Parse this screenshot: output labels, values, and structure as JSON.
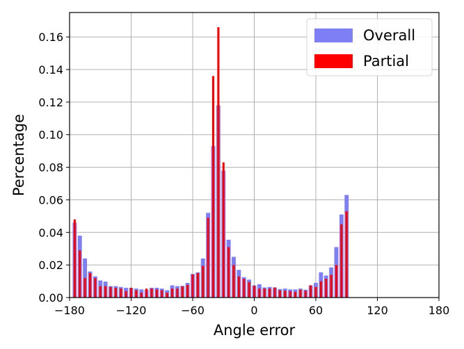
{
  "chart_data": {
    "type": "bar",
    "xlabel": "Angle error",
    "ylabel": "Percentage",
    "xlim": [
      -180,
      180
    ],
    "ylim": [
      0,
      0.175
    ],
    "xticks": [
      -180,
      -120,
      -60,
      0,
      60,
      120,
      180
    ],
    "xtick_labels": [
      "−180",
      "−120",
      "−60",
      "0",
      "60",
      "120",
      "180"
    ],
    "yticks": [
      0.0,
      0.02,
      0.04,
      0.06,
      0.08,
      0.1,
      0.12,
      0.14,
      0.16
    ],
    "ytick_labels": [
      "0.00",
      "0.02",
      "0.04",
      "0.06",
      "0.08",
      "0.10",
      "0.12",
      "0.14",
      "0.16"
    ],
    "grid": true,
    "legend_position": "top-right",
    "bin_centers": [
      -175,
      -170,
      -165,
      -160,
      -155,
      -150,
      -145,
      -140,
      -135,
      -130,
      -125,
      -120,
      -115,
      -110,
      -105,
      -100,
      -95,
      -90,
      -85,
      -80,
      -75,
      -70,
      -65,
      -60,
      -55,
      -50,
      -45,
      -40,
      -35,
      -30,
      -25,
      -20,
      -15,
      -10,
      -5,
      0,
      5,
      10,
      15,
      20,
      25,
      30,
      35,
      40,
      45,
      50,
      55,
      60,
      65,
      70,
      75,
      80,
      85,
      90,
      95,
      100,
      105,
      110,
      115,
      120,
      125,
      130,
      135,
      140,
      145,
      150,
      155,
      160,
      165,
      170,
      175
    ],
    "series": [
      {
        "name": "Overall",
        "color": "#7f7ff5",
        "values": [
          0.046,
          0.038,
          0.024,
          0.016,
          0.013,
          0.0105,
          0.0098,
          0.007,
          0.007,
          0.0065,
          0.006,
          0.006,
          0.0055,
          0.005,
          0.0048,
          0.006,
          0.006,
          0.0055,
          0.0045,
          0.0075,
          0.007,
          0.0072,
          0.009,
          0.0145,
          0.0155,
          0.024,
          0.052,
          0.093,
          0.118,
          0.078,
          0.0355,
          0.025,
          0.017,
          0.0125,
          0.011,
          0.0075,
          0.0082,
          0.0062,
          0.0065,
          0.0062,
          0.0052,
          0.0055,
          0.005,
          0.005,
          0.0055,
          0.0048,
          0.0075,
          0.009,
          0.0155,
          0.0135,
          0.0185,
          0.031,
          0.051,
          0.063,
          0.0,
          0.0,
          0.0,
          0.0,
          0.0,
          0.0,
          0.0,
          0.0,
          0.0,
          0.0,
          0.0,
          0.0,
          0.0,
          0.0,
          0.0,
          0.0,
          0.0
        ]
      },
      {
        "name": "Partial",
        "color": "#ff0000",
        "values": [
          0.048,
          0.029,
          0.012,
          0.015,
          0.012,
          0.007,
          0.007,
          0.0065,
          0.006,
          0.0055,
          0.004,
          0.006,
          0.0045,
          0.003,
          0.0055,
          0.0055,
          0.005,
          0.0045,
          0.003,
          0.0055,
          0.0055,
          0.0068,
          0.0078,
          0.0142,
          0.015,
          0.0195,
          0.049,
          0.136,
          0.166,
          0.083,
          0.031,
          0.02,
          0.013,
          0.0115,
          0.0095,
          0.0072,
          0.0055,
          0.0055,
          0.0055,
          0.0062,
          0.0045,
          0.0042,
          0.004,
          0.0035,
          0.0048,
          0.0042,
          0.0075,
          0.0065,
          0.01,
          0.0115,
          0.014,
          0.02,
          0.045,
          0.053,
          0.0,
          0.0,
          0.0,
          0.0,
          0.0,
          0.0,
          0.0,
          0.0,
          0.0,
          0.0,
          0.0,
          0.0,
          0.0,
          0.0,
          0.0,
          0.0,
          0.0
        ]
      }
    ]
  }
}
